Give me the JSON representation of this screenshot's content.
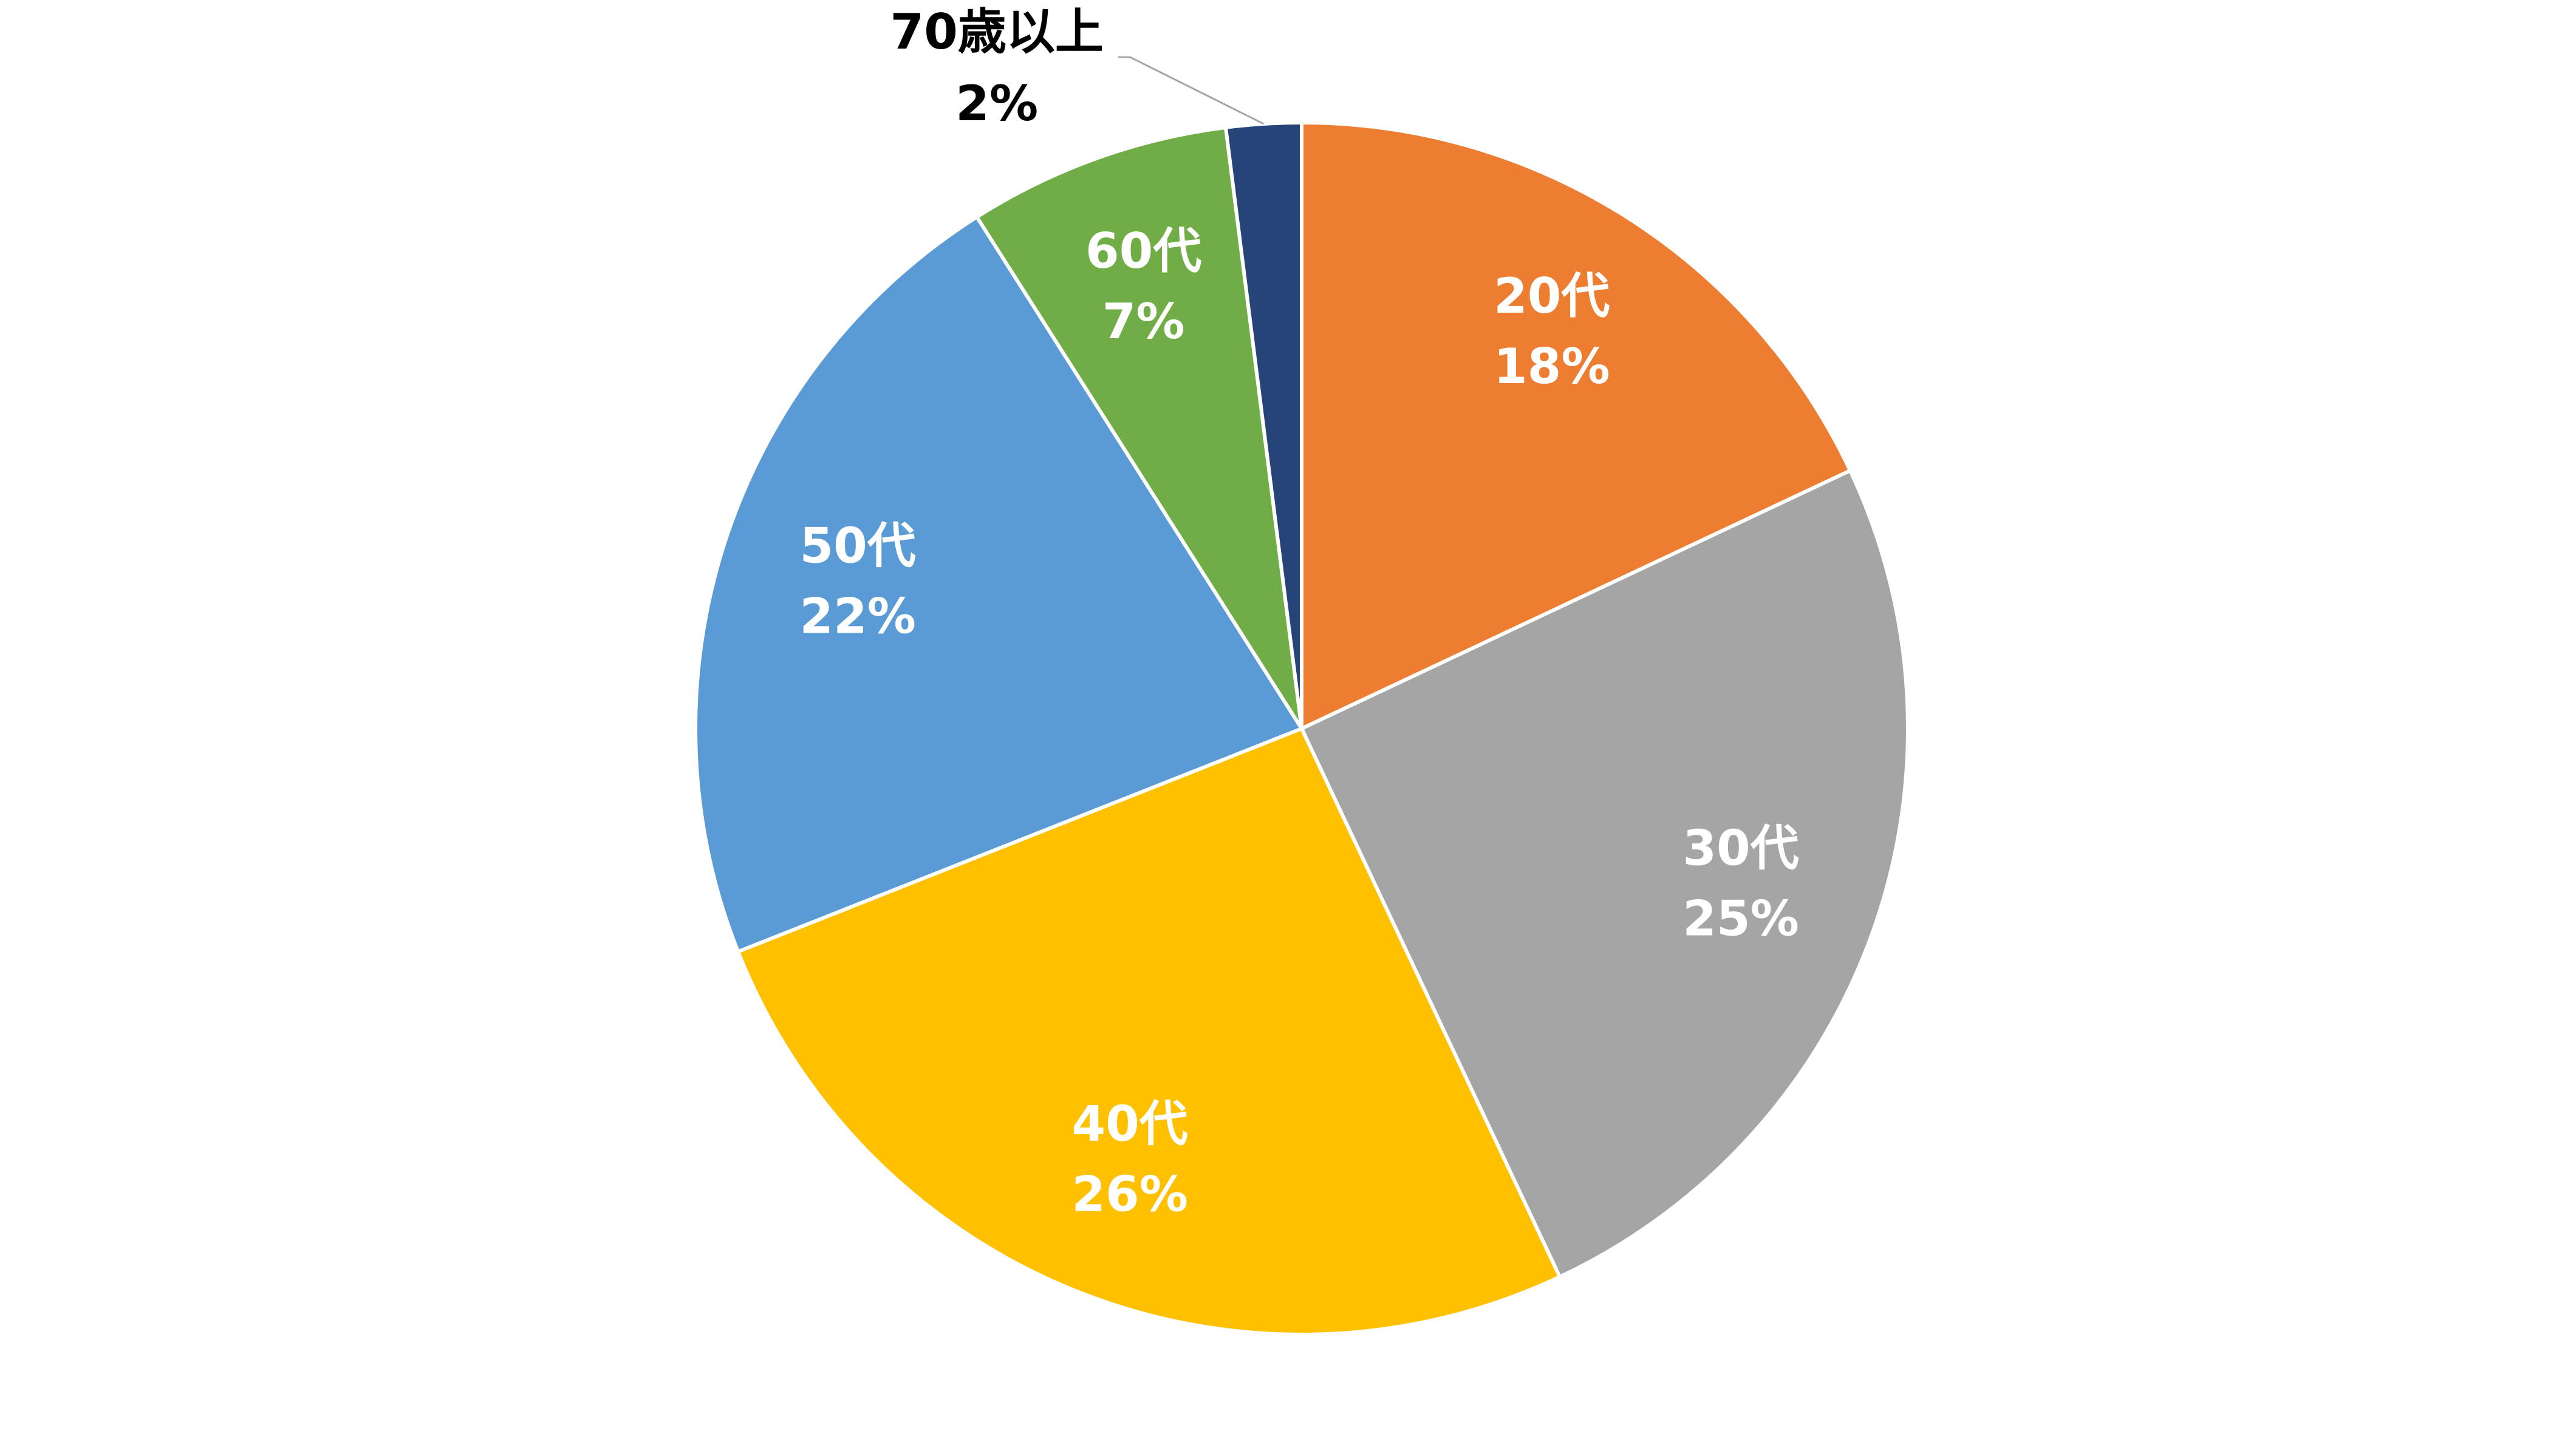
{
  "chart_data": {
    "type": "pie",
    "categories": [
      "20代",
      "30代",
      "40代",
      "50代",
      "60代",
      "70歳以上"
    ],
    "values": [
      18,
      25,
      26,
      22,
      7,
      2
    ],
    "value_labels": [
      "18%",
      "25%",
      "26%",
      "22%",
      "7%",
      "2%"
    ],
    "colors": [
      "#ed7d31",
      "#a5a5a5",
      "#ffc000",
      "#5b9bd5",
      "#70ad47",
      "#264478"
    ]
  }
}
